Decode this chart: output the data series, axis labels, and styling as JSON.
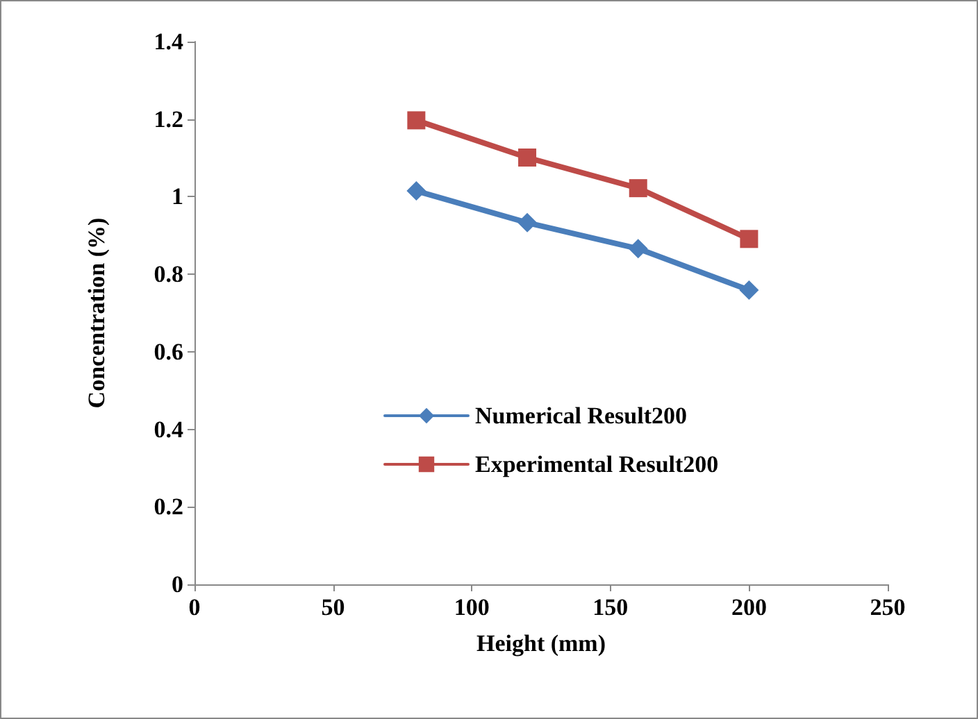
{
  "chart_data": {
    "type": "line",
    "xlabel": "Height (mm)",
    "ylabel": "Concentration (%)",
    "x": [
      80,
      120,
      160,
      200
    ],
    "series": [
      {
        "name": "Numerical Result200",
        "color": "#4a7ebb",
        "marker": "diamond",
        "values": [
          1.015,
          0.933,
          0.866,
          0.759
        ]
      },
      {
        "name": "Experimental Result200",
        "color": "#be4b48",
        "marker": "square",
        "values": [
          1.197,
          1.101,
          1.022,
          0.891
        ]
      }
    ],
    "xlim": [
      0,
      250
    ],
    "xticks": [
      0,
      50,
      100,
      150,
      200,
      250
    ],
    "ylim": [
      0,
      1.4
    ],
    "yticks": [
      0,
      0.2,
      0.4,
      0.6,
      0.8,
      1,
      1.2,
      1.4
    ],
    "grid": false,
    "legend": "center",
    "line_style": "solid"
  }
}
